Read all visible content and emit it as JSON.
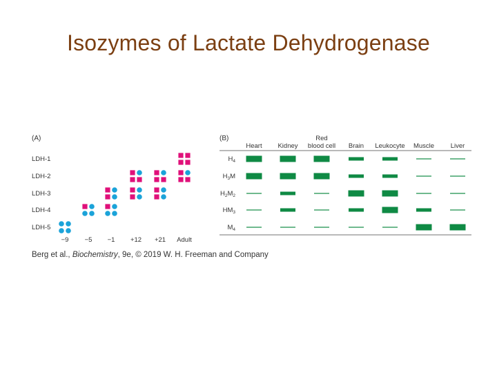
{
  "title": "Isozymes of Lactate Dehydrogenase",
  "colors": {
    "title": "#7b3f12",
    "h_subunit": "#e0107a",
    "m_subunit": "#1ba3d9",
    "band": "#0f8a44",
    "rule": "#444444"
  },
  "panel_a": {
    "label": "(A)",
    "rows": [
      "LDH-1",
      "LDH-2",
      "LDH-3",
      "LDH-4",
      "LDH-5"
    ],
    "stages": [
      "−9",
      "−5",
      "−1",
      "+12",
      "+21",
      "Adult"
    ],
    "composition": {
      "LDH-1": "4 H subunits",
      "LDH-2": "3 H : 1 M",
      "LDH-3": "2 H : 2 M",
      "LDH-4": "1 H : 3 M",
      "LDH-5": "4 M subunits"
    },
    "present_at_stage": {
      "−9": [
        "LDH-5"
      ],
      "−5": [
        "LDH-4"
      ],
      "−1": [
        "LDH-3",
        "LDH-4"
      ],
      "+12": [
        "LDH-2",
        "LDH-3"
      ],
      "+21": [
        "LDH-2",
        "LDH-3"
      ],
      "Adult": [
        "LDH-1",
        "LDH-2"
      ]
    }
  },
  "panel_b": {
    "label": "(B)",
    "tissues": [
      "Heart",
      "Kidney",
      "Red blood cell",
      "Brain",
      "Leukocyte",
      "Muscle",
      "Liver"
    ],
    "tissue_top_line": [
      "",
      "",
      "Red",
      "",
      "",
      "",
      ""
    ],
    "tissue_bottom_line": [
      "Heart",
      "Kidney",
      "blood cell",
      "Brain",
      "Leukocyte",
      "Muscle",
      "Liver"
    ],
    "isozymes": [
      {
        "base": "H",
        "sub": "4",
        "base2": "",
        "sub2": ""
      },
      {
        "base": "H",
        "sub": "3",
        "base2": "M",
        "sub2": ""
      },
      {
        "base": "H",
        "sub": "2",
        "base2": "M",
        "sub2": "2"
      },
      {
        "base": "HM",
        "sub": "3",
        "base2": "",
        "sub2": ""
      },
      {
        "base": "M",
        "sub": "4",
        "base2": "",
        "sub2": ""
      }
    ],
    "band_levels": [
      [
        3,
        3,
        3,
        2,
        2,
        1,
        1
      ],
      [
        3,
        3,
        3,
        2,
        2,
        1,
        1
      ],
      [
        1,
        2,
        1,
        3,
        3,
        1,
        1
      ],
      [
        1,
        2,
        1,
        2,
        3,
        2,
        1
      ],
      [
        1,
        1,
        1,
        1,
        1,
        3,
        3
      ]
    ]
  },
  "credit": {
    "prefix": "Berg et al., ",
    "italic": "Biochemistry",
    "suffix": ", 9e, © 2019 W. H. Freeman and Company"
  }
}
